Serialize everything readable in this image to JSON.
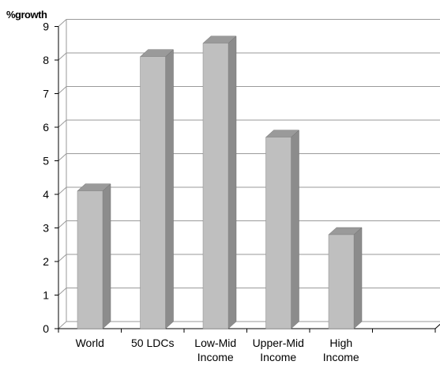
{
  "chart_data": {
    "type": "bar",
    "title": "",
    "ylabel": "%growth",
    "xlabel": "",
    "categories": [
      [
        "World"
      ],
      [
        "50 LDCs"
      ],
      [
        "Low-Mid",
        "Income"
      ],
      [
        "Upper-Mid",
        "Income"
      ],
      [
        "High",
        "Income"
      ]
    ],
    "values": [
      4.1,
      8.1,
      8.5,
      5.7,
      2.8
    ],
    "ylim": [
      0,
      9
    ],
    "yticks": [
      "0",
      "1",
      "2",
      "3",
      "4",
      "5",
      "6",
      "7",
      "8",
      "9"
    ],
    "grid": true,
    "legend": "none",
    "style": "3d-column",
    "colors": {
      "bar_front": "#bfbfbf",
      "bar_side": "#8c8c8c",
      "bar_top": "#9a9a9a",
      "gridline": "#9a9a9a",
      "axis": "#000000"
    }
  }
}
